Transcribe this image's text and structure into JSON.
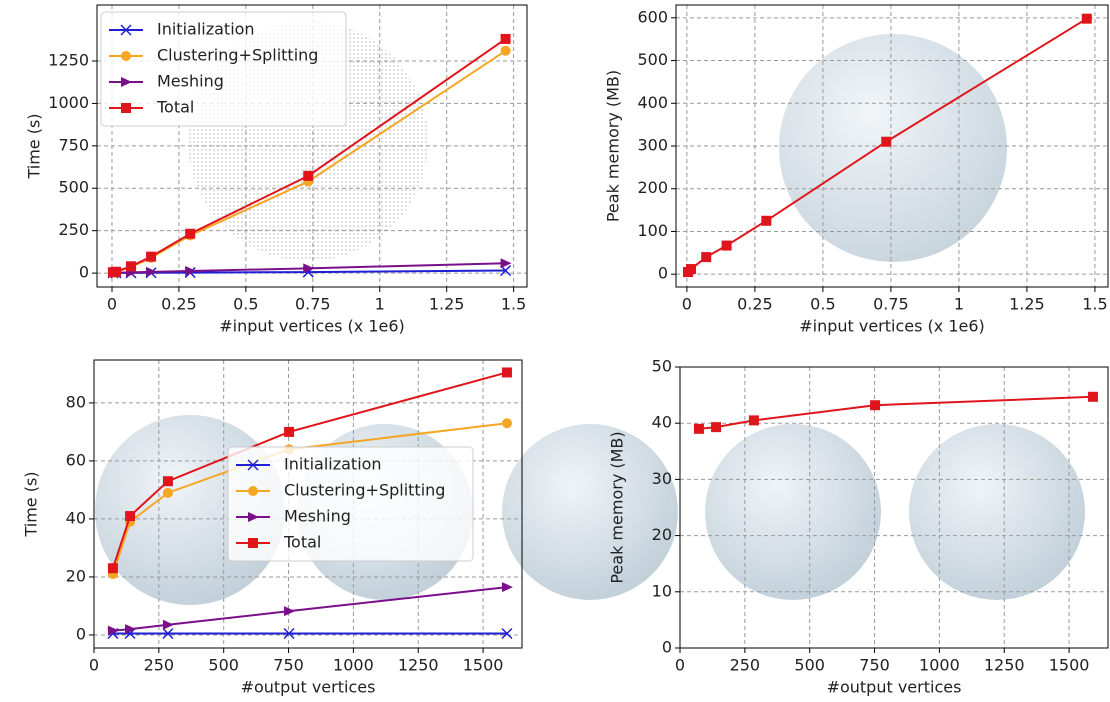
{
  "chart_data": [
    {
      "type": "line",
      "x_label": "#input vertices (x 1e6)",
      "y_label": "Time (s)",
      "legend": "upper left",
      "grid": true,
      "xlim": [
        -0.056,
        1.55
      ],
      "ylim": [
        -82,
        1580
      ],
      "xticks": [
        0,
        0.25,
        0.5,
        0.75,
        1,
        1.25,
        1.5
      ],
      "yticks": [
        0,
        250,
        500,
        750,
        1000,
        1250
      ],
      "x": [
        0.004,
        0.015,
        0.071,
        0.146,
        0.292,
        0.733,
        1.47
      ],
      "series": [
        {
          "name": "Initialization",
          "color": "#1f1fd6",
          "marker": "x",
          "values": [
            0.5,
            0.5,
            1,
            2,
            3,
            6,
            15
          ]
        },
        {
          "name": "Clustering+Splitting",
          "color": "#f5a623",
          "marker": "o",
          "values": [
            3,
            6,
            35,
            90,
            222,
            540,
            1310
          ]
        },
        {
          "name": "Meshing",
          "color": "#7a0f8a",
          "marker": ">",
          "values": [
            1,
            2,
            4,
            7,
            12,
            28,
            58
          ]
        },
        {
          "name": "Total",
          "color": "#e0151b",
          "marker": "s",
          "values": [
            5,
            8,
            40,
            97,
            232,
            573,
            1380
          ]
        }
      ]
    },
    {
      "type": "line",
      "x_label": "#input vertices (x 1e6)",
      "y_label": "Peak memory (MB)",
      "grid": true,
      "xlim": [
        -0.04,
        1.548
      ],
      "ylim": [
        -30,
        630
      ],
      "xticks": [
        0,
        0.25,
        0.5,
        0.75,
        1,
        1.25,
        1.5
      ],
      "yticks": [
        0,
        100,
        200,
        300,
        400,
        500,
        600
      ],
      "x": [
        0.004,
        0.015,
        0.071,
        0.146,
        0.292,
        0.733,
        1.47
      ],
      "series": [
        {
          "color": "#e0151b",
          "marker": "s",
          "values": [
            5,
            12,
            40,
            67,
            125,
            310,
            598
          ]
        }
      ]
    },
    {
      "type": "line",
      "x_label": "#output vertices",
      "y_label": "Time (s)",
      "legend": "center",
      "grid": true,
      "xlim": [
        0,
        1650
      ],
      "ylim": [
        -4.5,
        94.8
      ],
      "xticks": [
        0,
        250,
        500,
        750,
        1000,
        1250,
        1500
      ],
      "yticks": [
        0,
        20,
        40,
        60,
        80
      ],
      "x": [
        73,
        139,
        285,
        752,
        1592
      ],
      "series": [
        {
          "name": "Initialization",
          "color": "#1f1fd6",
          "marker": "x",
          "values": [
            0.5,
            0.5,
            0.5,
            0.5,
            0.5
          ]
        },
        {
          "name": "Clustering+Splitting",
          "color": "#f5a623",
          "marker": "o",
          "values": [
            21,
            39,
            49,
            64,
            73
          ]
        },
        {
          "name": "Meshing",
          "color": "#7a0f8a",
          "marker": ">",
          "values": [
            1.5,
            2,
            3.5,
            8.2,
            16.5
          ]
        },
        {
          "name": "Total",
          "color": "#e0151b",
          "marker": "s",
          "values": [
            23,
            41,
            53,
            70,
            90.5
          ]
        }
      ]
    },
    {
      "type": "line",
      "x_label": "#output vertices",
      "y_label": "Peak memory (MB)",
      "grid": true,
      "xlim": [
        0,
        1650
      ],
      "ylim": [
        0,
        50
      ],
      "xticks": [
        0,
        250,
        500,
        750,
        1000,
        1250,
        1500
      ],
      "yticks": [
        0,
        10,
        20,
        30,
        40,
        50
      ],
      "x": [
        73,
        139,
        285,
        752,
        1592
      ],
      "series": [
        {
          "color": "#e0151b",
          "marker": "s",
          "values": [
            39,
            39.3,
            40.5,
            43.2,
            44.7
          ]
        }
      ]
    }
  ]
}
